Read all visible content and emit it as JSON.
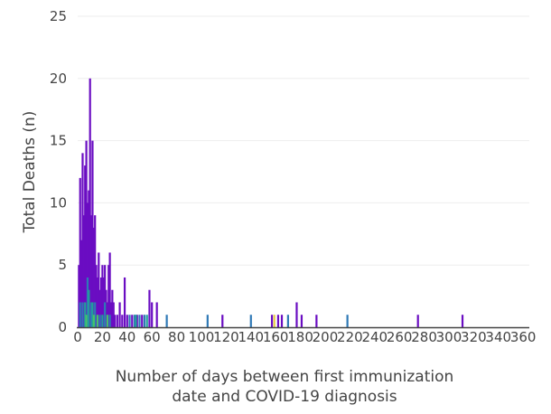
{
  "chart_data": {
    "type": "bar",
    "xlabel_lines": [
      "Number of days between first immunization",
      "date and COVID-19 diagnosis"
    ],
    "ylabel": "Total Deaths (n)",
    "xlim": [
      0,
      365
    ],
    "ylim": [
      0,
      25
    ],
    "x_ticks": [
      0,
      20,
      40,
      60,
      80,
      100,
      120,
      140,
      160,
      180,
      200,
      220,
      240,
      260,
      280,
      300,
      320,
      340,
      360
    ],
    "y_ticks": [
      0,
      5,
      10,
      15,
      20,
      25
    ],
    "grid": true,
    "colors": {
      "purple": "#6a0dc2",
      "blue": "#2f79b6",
      "teal": "#21a09a",
      "green": "#45c26a",
      "yellow": "#e8d04a",
      "axis": "#444444",
      "grid": "#eeeeee"
    },
    "bars": [
      {
        "x": 1,
        "y": 5,
        "color": "purple"
      },
      {
        "x": 2,
        "y": 12,
        "color": "purple"
      },
      {
        "x": 3,
        "y": 7,
        "color": "purple"
      },
      {
        "x": 4,
        "y": 14,
        "color": "purple"
      },
      {
        "x": 5,
        "y": 9,
        "color": "purple"
      },
      {
        "x": 6,
        "y": 13,
        "color": "purple"
      },
      {
        "x": 7,
        "y": 15,
        "color": "purple"
      },
      {
        "x": 8,
        "y": 10,
        "color": "purple"
      },
      {
        "x": 9,
        "y": 11,
        "color": "purple"
      },
      {
        "x": 10,
        "y": 20,
        "color": "purple"
      },
      {
        "x": 11,
        "y": 9,
        "color": "purple"
      },
      {
        "x": 12,
        "y": 15,
        "color": "purple"
      },
      {
        "x": 13,
        "y": 8,
        "color": "purple"
      },
      {
        "x": 14,
        "y": 9,
        "color": "purple"
      },
      {
        "x": 15,
        "y": 5,
        "color": "purple"
      },
      {
        "x": 16,
        "y": 4,
        "color": "purple"
      },
      {
        "x": 17,
        "y": 6,
        "color": "purple"
      },
      {
        "x": 18,
        "y": 3,
        "color": "purple"
      },
      {
        "x": 19,
        "y": 4,
        "color": "purple"
      },
      {
        "x": 20,
        "y": 5,
        "color": "purple"
      },
      {
        "x": 21,
        "y": 4,
        "color": "purple"
      },
      {
        "x": 22,
        "y": 5,
        "color": "purple"
      },
      {
        "x": 23,
        "y": 3,
        "color": "purple"
      },
      {
        "x": 24,
        "y": 2,
        "color": "purple"
      },
      {
        "x": 25,
        "y": 5,
        "color": "purple"
      },
      {
        "x": 26,
        "y": 6,
        "color": "purple"
      },
      {
        "x": 27,
        "y": 2,
        "color": "purple"
      },
      {
        "x": 28,
        "y": 3,
        "color": "purple"
      },
      {
        "x": 29,
        "y": 2,
        "color": "purple"
      },
      {
        "x": 30,
        "y": 1,
        "color": "purple"
      },
      {
        "x": 32,
        "y": 1,
        "color": "purple"
      },
      {
        "x": 34,
        "y": 2,
        "color": "purple"
      },
      {
        "x": 36,
        "y": 1,
        "color": "purple"
      },
      {
        "x": 38,
        "y": 4,
        "color": "purple"
      },
      {
        "x": 40,
        "y": 1,
        "color": "purple"
      },
      {
        "x": 44,
        "y": 1,
        "color": "purple"
      },
      {
        "x": 48,
        "y": 1,
        "color": "purple"
      },
      {
        "x": 52,
        "y": 1,
        "color": "purple"
      },
      {
        "x": 58,
        "y": 3,
        "color": "purple"
      },
      {
        "x": 60,
        "y": 2,
        "color": "purple"
      },
      {
        "x": 64,
        "y": 2,
        "color": "purple"
      },
      {
        "x": 117,
        "y": 1,
        "color": "purple"
      },
      {
        "x": 157,
        "y": 1,
        "color": "purple"
      },
      {
        "x": 162,
        "y": 1,
        "color": "purple"
      },
      {
        "x": 165,
        "y": 1,
        "color": "purple"
      },
      {
        "x": 177,
        "y": 2,
        "color": "purple"
      },
      {
        "x": 181,
        "y": 1,
        "color": "purple"
      },
      {
        "x": 193,
        "y": 1,
        "color": "purple"
      },
      {
        "x": 275,
        "y": 1,
        "color": "purple"
      },
      {
        "x": 311,
        "y": 1,
        "color": "purple"
      },
      {
        "x": 2,
        "y": 2,
        "color": "blue"
      },
      {
        "x": 4,
        "y": 2,
        "color": "blue"
      },
      {
        "x": 8,
        "y": 4,
        "color": "blue"
      },
      {
        "x": 11,
        "y": 2,
        "color": "blue"
      },
      {
        "x": 14,
        "y": 2,
        "color": "blue"
      },
      {
        "x": 18,
        "y": 1,
        "color": "blue"
      },
      {
        "x": 22,
        "y": 2,
        "color": "blue"
      },
      {
        "x": 26,
        "y": 1,
        "color": "blue"
      },
      {
        "x": 42,
        "y": 1,
        "color": "blue"
      },
      {
        "x": 46,
        "y": 1,
        "color": "blue"
      },
      {
        "x": 50,
        "y": 1,
        "color": "blue"
      },
      {
        "x": 54,
        "y": 1,
        "color": "blue"
      },
      {
        "x": 72,
        "y": 1,
        "color": "blue"
      },
      {
        "x": 105,
        "y": 1,
        "color": "blue"
      },
      {
        "x": 140,
        "y": 1,
        "color": "blue"
      },
      {
        "x": 170,
        "y": 1,
        "color": "blue"
      },
      {
        "x": 218,
        "y": 1,
        "color": "blue"
      },
      {
        "x": 6,
        "y": 2,
        "color": "teal"
      },
      {
        "x": 9,
        "y": 3,
        "color": "teal"
      },
      {
        "x": 12,
        "y": 2,
        "color": "teal"
      },
      {
        "x": 20,
        "y": 1,
        "color": "teal"
      },
      {
        "x": 47,
        "y": 1,
        "color": "teal"
      },
      {
        "x": 56,
        "y": 1,
        "color": "teal"
      },
      {
        "x": 7,
        "y": 1,
        "color": "green"
      },
      {
        "x": 13,
        "y": 1,
        "color": "green"
      },
      {
        "x": 16,
        "y": 1,
        "color": "green"
      },
      {
        "x": 24,
        "y": 1,
        "color": "green"
      },
      {
        "x": 159,
        "y": 1,
        "color": "yellow"
      }
    ]
  }
}
